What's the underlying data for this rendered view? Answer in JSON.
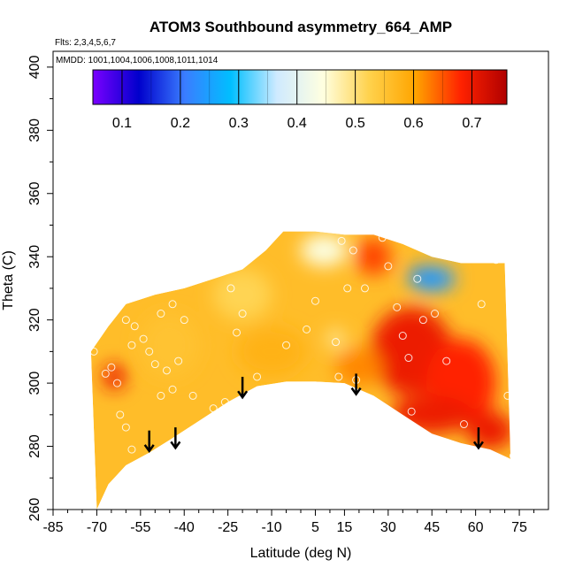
{
  "chart_data": {
    "type": "heatmap",
    "title": "ATOM3 Southbound asymmetry_664_AMP",
    "subtitle_flights": "Flts: 2,3,4,5,6,7",
    "subtitle_dates": "MMDD: 1001,1004,1006,1008,1011,1014",
    "xlabel": "Latitude (deg N)",
    "ylabel": "Theta (C)",
    "xlim": [
      -85,
      85
    ],
    "ylim": [
      260,
      405
    ],
    "x_ticks": [
      -85,
      -70,
      -55,
      -40,
      -25,
      -10,
      5,
      15,
      30,
      45,
      60,
      75
    ],
    "y_ticks": [
      260,
      280,
      300,
      320,
      340,
      360,
      380,
      400
    ],
    "colorbar": {
      "range": [
        0.05,
        0.76
      ],
      "ticks": [
        0.1,
        0.2,
        0.3,
        0.4,
        0.5,
        0.6,
        0.7
      ],
      "colors": [
        "#7a00ff",
        "#0000cc",
        "#3a7dff",
        "#00bfff",
        "#cfeaff",
        "#ffffe0",
        "#ffd24d",
        "#ffa500",
        "#ff2200",
        "#b00000"
      ]
    },
    "grid": false,
    "upper_boundary": [
      [
        -72,
        310
      ],
      [
        -66,
        318
      ],
      [
        -60,
        325
      ],
      [
        -50,
        328
      ],
      [
        -40,
        330
      ],
      [
        -30,
        333
      ],
      [
        -20,
        336
      ],
      [
        -12,
        342
      ],
      [
        -6,
        348
      ],
      [
        5,
        348
      ],
      [
        15,
        347
      ],
      [
        25,
        347
      ],
      [
        35,
        344
      ],
      [
        45,
        340
      ],
      [
        55,
        338
      ],
      [
        70,
        338
      ]
    ],
    "lower_boundary": [
      [
        -70,
        260
      ],
      [
        -66,
        268
      ],
      [
        -60,
        274
      ],
      [
        -52,
        278
      ],
      [
        -45,
        282
      ],
      [
        -35,
        288
      ],
      [
        -25,
        294
      ],
      [
        -15,
        299
      ],
      [
        -5,
        300.5
      ],
      [
        5,
        300.5
      ],
      [
        15,
        300
      ],
      [
        25,
        296
      ],
      [
        35,
        290
      ],
      [
        45,
        284
      ],
      [
        55,
        281
      ],
      [
        65,
        279
      ],
      [
        72,
        276
      ]
    ],
    "blobs": [
      {
        "x": -64,
        "y": 302,
        "value": 0.7,
        "rx": 4,
        "ry": 4
      },
      {
        "x": 38,
        "y": 310,
        "value": 0.7,
        "rx": 14,
        "ry": 14
      },
      {
        "x": 55,
        "y": 300,
        "value": 0.68,
        "rx": 12,
        "ry": 14
      },
      {
        "x": 45,
        "y": 290,
        "value": 0.7,
        "rx": 14,
        "ry": 6
      },
      {
        "x": 65,
        "y": 285,
        "value": 0.7,
        "rx": 8,
        "ry": 6
      },
      {
        "x": 25,
        "y": 340,
        "value": 0.66,
        "rx": 6,
        "ry": 6
      },
      {
        "x": 42,
        "y": 334,
        "value": 0.14,
        "rx": 5,
        "ry": 3
      },
      {
        "x": 45,
        "y": 333,
        "value": 0.24,
        "rx": 8,
        "ry": 4
      },
      {
        "x": 8,
        "y": 342,
        "value": 0.44,
        "rx": 8,
        "ry": 5
      },
      {
        "x": -20,
        "y": 328,
        "value": 0.52,
        "rx": 10,
        "ry": 8
      },
      {
        "x": 12,
        "y": 314,
        "value": 0.48,
        "rx": 3,
        "ry": 3
      },
      {
        "x": -45,
        "y": 312,
        "value": 0.55,
        "rx": 10,
        "ry": 10
      },
      {
        "x": -10,
        "y": 310,
        "value": 0.58,
        "rx": 12,
        "ry": 8
      },
      {
        "x": 20,
        "y": 305,
        "value": 0.62,
        "rx": 8,
        "ry": 6
      }
    ],
    "base_value": 0.56,
    "points": [
      [
        -71,
        310
      ],
      [
        -67,
        303
      ],
      [
        -65,
        305
      ],
      [
        -63,
        300
      ],
      [
        -62,
        290
      ],
      [
        -60,
        286
      ],
      [
        -58,
        279
      ],
      [
        -55,
        275
      ],
      [
        -57,
        318
      ],
      [
        -60,
        320
      ],
      [
        -58,
        312
      ],
      [
        -54,
        314
      ],
      [
        -52,
        310
      ],
      [
        -50,
        306
      ],
      [
        -46,
        304
      ],
      [
        -48,
        296
      ],
      [
        -44,
        298
      ],
      [
        -42,
        307
      ],
      [
        -48,
        322
      ],
      [
        -44,
        325
      ],
      [
        -40,
        320
      ],
      [
        -37,
        296
      ],
      [
        -30,
        292
      ],
      [
        -26,
        294
      ],
      [
        -24,
        330
      ],
      [
        -22,
        316
      ],
      [
        -20,
        322
      ],
      [
        -15,
        302
      ],
      [
        -5,
        312
      ],
      [
        2,
        317
      ],
      [
        5,
        326
      ],
      [
        12,
        313
      ],
      [
        13,
        302
      ],
      [
        14,
        345
      ],
      [
        16,
        330
      ],
      [
        18,
        342
      ],
      [
        19,
        301
      ],
      [
        22,
        330
      ],
      [
        28,
        346
      ],
      [
        30,
        337
      ],
      [
        33,
        324
      ],
      [
        35,
        315
      ],
      [
        37,
        308
      ],
      [
        38,
        291
      ],
      [
        40,
        333
      ],
      [
        42,
        320
      ],
      [
        46,
        322
      ],
      [
        50,
        307
      ],
      [
        56,
        287
      ],
      [
        62,
        325
      ],
      [
        67,
        339
      ],
      [
        71,
        296
      ],
      [
        73,
        277
      ]
    ],
    "arrows": [
      [
        -52,
        285
      ],
      [
        -43,
        286
      ],
      [
        -20,
        302
      ],
      [
        19,
        303
      ],
      [
        61,
        286
      ]
    ]
  }
}
